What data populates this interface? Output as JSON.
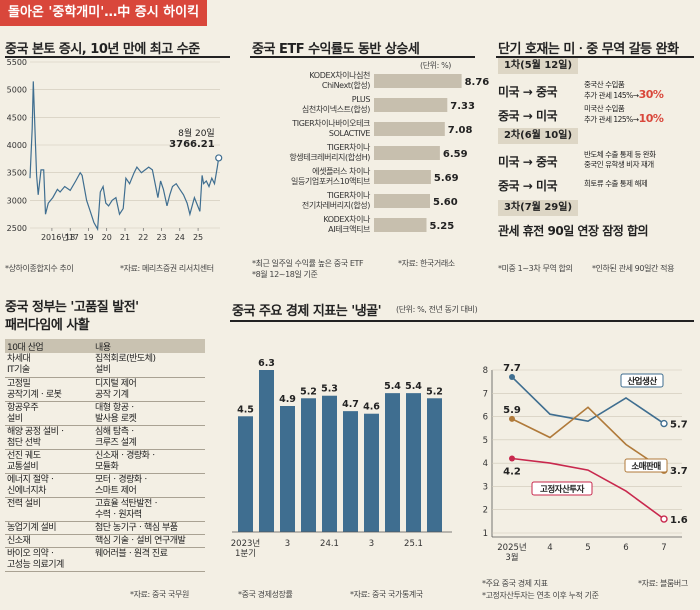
{
  "header": {
    "banner": "돌아온 '중학개미'…中 증시 하이킥"
  },
  "panels": {
    "p1": {
      "title": "중국 본토 증시, 10년 만에 최고 수준",
      "note": "*상하이종합지수 추이",
      "source": "*자료: 메리츠증권 리서치센터"
    },
    "p2": {
      "title": "중국 ETF 수익률도 동반 상승세",
      "unit": "(단위: %)",
      "note1": "*최근 일주일 수익률 높은 중국 ETF",
      "note2": "*8월 12~18일 기준",
      "source": "*자료: 한국거래소"
    },
    "p3": {
      "title": "단기 호재는 미ㆍ중 무역 갈등 완화",
      "round1": "1차(5월 12일)",
      "round2": "2차(6월 10일)",
      "round3": "3차(7월 29일)",
      "r1a": {
        "dir": "미국 → 중국",
        "l1": "중국산 수입품",
        "l2": "추가 관세 145%→",
        "v": "30%"
      },
      "r1b": {
        "dir": "중국 → 미국",
        "l1": "미국산 수입품",
        "l2": "추가 관세 125%→",
        "v": "10%"
      },
      "r2a": {
        "dir": "미국 → 중국",
        "l1": "반도체 수출 통제 등 완화",
        "l2": "중국인 유학생 비자 재개"
      },
      "r2b": {
        "dir": "중국 → 미국",
        "l1": "희토류 수출 통제 해제"
      },
      "r3": "관세 휴전 90일 연장 잠정 합의",
      "note": "*미중 1~3차 무역 합의",
      "source": "*인하된 관세 90일간 적용"
    },
    "p4": {
      "title1": "중국 정부는 '고품질 발전'",
      "title2": "패러다임에 사활",
      "headers": [
        "10대 산업",
        "내용"
      ],
      "rows": [
        [
          "차세대\nIT기술",
          "집적회로(반도체)\n설비"
        ],
        [
          "고정밀\n공작기계ㆍ로봇",
          "디지털 제어\n공작 기계"
        ],
        [
          "항공우주\n설비",
          "대형 항공ㆍ\n발사용 로켓"
        ],
        [
          "해양 공정 설비ㆍ\n첨단 선박",
          "심해 탐측ㆍ\n크루즈 설계"
        ],
        [
          "선진 궤도\n교통설비",
          "신소재ㆍ경량화ㆍ\n모듈화"
        ],
        [
          "에너지 절약ㆍ\n신에너지차",
          "모터ㆍ경량화ㆍ\n스마트 제어"
        ],
        [
          "전력 설비",
          "고효율 석탄발전ㆍ\n수력ㆍ원자력"
        ],
        [
          "농업기계 설비",
          "첨단 농기구ㆍ핵심 부품"
        ],
        [
          "신소재",
          "핵심 기술ㆍ설비 연구개발"
        ],
        [
          "바이오 의약ㆍ\n고성능 의료기계",
          "웨어러블ㆍ원격 진료"
        ]
      ],
      "source": "*자료: 중국 국무원"
    },
    "p5": {
      "title": "중국 주요 경제 지표는 '냉골'",
      "unit": "(단위: %, 전년 동기 대비)",
      "source1": "*중국 경제성장률",
      "source2": "*자료: 중국 국가통계국"
    },
    "p6": {
      "note1": "*주요 중국 경제 지표",
      "note2": "*고정자산투자는 연초 이후 누적 기준",
      "source": "*자료: 블룸버그"
    }
  },
  "chart_data": [
    {
      "type": "line",
      "title": "중국 본토 증시, 10년 만에 최고 수준",
      "x_ticks": [
        "2016년17",
        "18",
        "19",
        "20",
        "21",
        "22",
        "23",
        "24",
        "25"
      ],
      "y_ticks": [
        2500,
        3000,
        3500,
        4000,
        4500,
        5000,
        5500
      ],
      "ylim": [
        2500,
        5500
      ],
      "xlim": [
        2015.3,
        2025.7
      ],
      "series": [
        {
          "x": [
            2015.3,
            2015.42,
            2015.48,
            2015.6,
            2015.66,
            2015.75,
            2015.9,
            2016.05,
            2016.15,
            2016.3,
            2016.55,
            2016.8,
            2016.95,
            2017.2,
            2017.5,
            2017.8,
            2018.05,
            2018.15,
            2018.4,
            2018.6,
            2018.8,
            2019.0,
            2019.15,
            2019.3,
            2019.45,
            2019.6,
            2019.8,
            2020.0,
            2020.2,
            2020.4,
            2020.55,
            2020.75,
            2021.0,
            2021.15,
            2021.4,
            2021.6,
            2021.8,
            2022.0,
            2022.3,
            2022.45,
            2022.6,
            2022.8,
            2022.95,
            2023.1,
            2023.3,
            2023.5,
            2023.7,
            2023.9,
            2024.05,
            2024.3,
            2024.6,
            2024.72,
            2024.8,
            2024.95,
            2025.1,
            2025.25,
            2025.4,
            2025.55,
            2025.63
          ],
          "y": [
            3400,
            4300,
            5150,
            4000,
            3450,
            3100,
            3550,
            3550,
            2750,
            2950,
            3050,
            3200,
            3150,
            3250,
            3180,
            3350,
            3500,
            3450,
            3000,
            2800,
            2600,
            2480,
            3150,
            3250,
            2950,
            2900,
            3000,
            3050,
            2750,
            2850,
            3400,
            3300,
            3500,
            3600,
            3500,
            3550,
            3600,
            3550,
            3050,
            3350,
            3200,
            2900,
            3100,
            3250,
            3300,
            3200,
            3100,
            2950,
            2750,
            3050,
            2800,
            3450,
            3300,
            3350,
            3250,
            3400,
            3300,
            3600,
            3766.21
          ]
        }
      ],
      "annotation": {
        "label": "8월 20일",
        "value": "3766.21"
      }
    },
    {
      "type": "bar",
      "title": "중국 ETF 수익률도 동반 상승세",
      "categories": [
        "KODEX차이나심천 ChiNext(합성)",
        "PLUS 심천차이넥스트(합성)",
        "TIGER차이나바이오테크 SOLACTIVE",
        "TIGER차이나 항셍테크레버리지(합성 H)",
        "에셋플러스 차이나 일등기업포커스10액티브",
        "TIGER차이나 전기차레버리지(합성)",
        "KODEX차이나 AI테크액티브"
      ],
      "category_lines": [
        [
          "KODEX차이나심천",
          "ChiNext(합성)"
        ],
        [
          "PLUS",
          "심천차이넥스트(합성)"
        ],
        [
          "TIGER차이나바이오테크",
          "SOLACTIVE"
        ],
        [
          "TIGER차이나",
          "항셍테크레버리지(합성H)"
        ],
        [
          "에셋플러스 차이나",
          "일등기업포커스10액티브"
        ],
        [
          "TIGER차이나",
          "전기차레버리지(합성)"
        ],
        [
          "KODEX차이나",
          "AI테크액티브"
        ]
      ],
      "values": [
        8.76,
        7.33,
        7.08,
        6.59,
        5.69,
        5.6,
        5.25
      ],
      "ylim": [
        0,
        9
      ]
    },
    {
      "type": "bar",
      "title": "중국 주요 경제 지표는 '냉골'",
      "x_labels": [
        "2023년\n1분기",
        "",
        "3",
        "",
        "24.1",
        "",
        "3",
        "",
        "25.1",
        ""
      ],
      "values": [
        4.5,
        6.3,
        4.9,
        5.2,
        5.3,
        4.7,
        4.6,
        5.4,
        5.4,
        5.2
      ],
      "ylim": [
        0,
        7
      ]
    },
    {
      "type": "line",
      "categories": [
        "2025년\n3월",
        "4",
        "5",
        "6",
        "7"
      ],
      "ylim": [
        1,
        8
      ],
      "y_ticks": [
        1,
        2,
        3,
        4,
        5,
        6,
        7,
        8
      ],
      "series": [
        {
          "name": "산업생산",
          "values": [
            7.7,
            6.1,
            5.8,
            6.8,
            5.7
          ],
          "color": "#3f6e90"
        },
        {
          "name": "소매판매",
          "values": [
            5.9,
            5.1,
            6.4,
            4.8,
            3.7
          ],
          "color": "#b07a3a"
        },
        {
          "name": "고정자산투자",
          "values": [
            4.2,
            4.0,
            3.7,
            2.8,
            1.6
          ],
          "color": "#c8284d"
        }
      ],
      "end_labels": [
        "5.7",
        "3.7",
        "1.6"
      ],
      "start_labels": [
        "7.7",
        "5.9",
        "4.2"
      ]
    }
  ]
}
